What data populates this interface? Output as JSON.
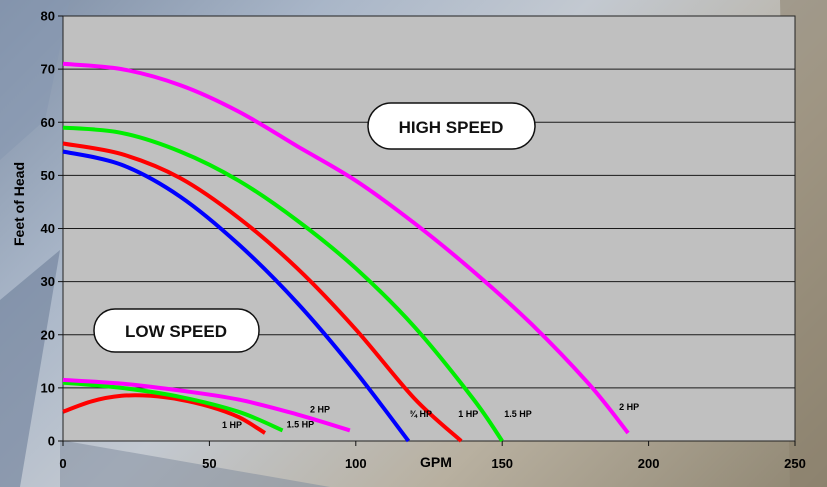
{
  "chart_data": {
    "type": "line",
    "title": "",
    "xlabel": "GPM",
    "ylabel": "Feet of Head",
    "xlim": [
      0,
      250
    ],
    "ylim": [
      0,
      80
    ],
    "xticks": [
      0,
      50,
      100,
      150,
      200,
      250
    ],
    "yticks": [
      0,
      10,
      20,
      30,
      40,
      50,
      60,
      70,
      80
    ],
    "grid": "horizontal",
    "annotations": [
      "HIGH SPEED",
      "LOW SPEED"
    ],
    "series": [
      {
        "name": "¾ HP",
        "group": "high",
        "color": "#0000ff",
        "points": [
          [
            0,
            54.5
          ],
          [
            20,
            52
          ],
          [
            40,
            46
          ],
          [
            60,
            37
          ],
          [
            80,
            26
          ],
          [
            100,
            13
          ],
          [
            118,
            0
          ]
        ]
      },
      {
        "name": "1 HP",
        "group": "high",
        "color": "#ff0000",
        "points": [
          [
            0,
            56
          ],
          [
            20,
            54
          ],
          [
            40,
            49.5
          ],
          [
            60,
            42
          ],
          [
            80,
            32.5
          ],
          [
            100,
            21
          ],
          [
            120,
            8
          ],
          [
            136,
            0
          ]
        ]
      },
      {
        "name": "1.5 HP",
        "group": "high",
        "color": "#00ee00",
        "points": [
          [
            0,
            59
          ],
          [
            20,
            58
          ],
          [
            40,
            54.5
          ],
          [
            60,
            49
          ],
          [
            80,
            41.5
          ],
          [
            100,
            32.5
          ],
          [
            120,
            21.5
          ],
          [
            140,
            8
          ],
          [
            150,
            0
          ]
        ]
      },
      {
        "name": "2 HP",
        "group": "high",
        "color": "#ff00ff",
        "points": [
          [
            0,
            71
          ],
          [
            20,
            70
          ],
          [
            40,
            67
          ],
          [
            60,
            62
          ],
          [
            80,
            55.5
          ],
          [
            100,
            49
          ],
          [
            120,
            41
          ],
          [
            140,
            32
          ],
          [
            160,
            22
          ],
          [
            180,
            10.5
          ],
          [
            193,
            1.5
          ]
        ]
      },
      {
        "name": "1 HP",
        "group": "low",
        "color": "#ff0000",
        "points": [
          [
            0,
            5.5
          ],
          [
            10,
            7.5
          ],
          [
            20,
            8.5
          ],
          [
            30,
            8.5
          ],
          [
            40,
            7.8
          ],
          [
            50,
            6.5
          ],
          [
            60,
            4.5
          ],
          [
            69,
            1.5
          ]
        ]
      },
      {
        "name": "1.5 HP",
        "group": "low",
        "color": "#00ee00",
        "points": [
          [
            0,
            11
          ],
          [
            20,
            10
          ],
          [
            40,
            8.3
          ],
          [
            60,
            5.5
          ],
          [
            75,
            2
          ]
        ]
      },
      {
        "name": "2 HP",
        "group": "low",
        "color": "#ff00ff",
        "points": [
          [
            0,
            11.5
          ],
          [
            20,
            10.8
          ],
          [
            40,
            9.5
          ],
          [
            60,
            7.8
          ],
          [
            80,
            5
          ],
          [
            98,
            2
          ]
        ]
      }
    ]
  }
}
